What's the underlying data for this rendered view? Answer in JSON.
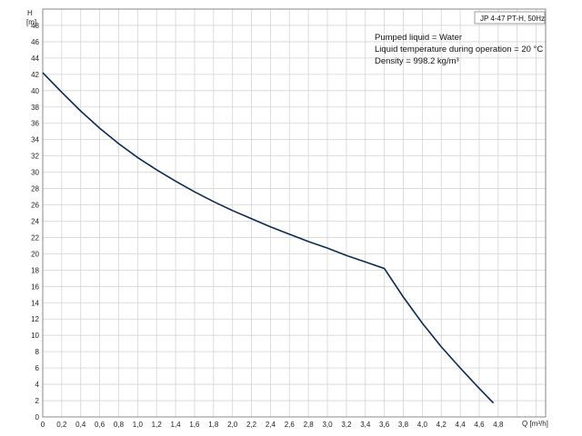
{
  "chart_data": {
    "type": "line",
    "title": "JP 4-47 PT-H, 50Hz",
    "xlabel": "Q [m³/h]",
    "ylabel_top": "H",
    "ylabel_unit": "[m]",
    "xlim": [
      0,
      5.3
    ],
    "ylim": [
      0,
      50
    ],
    "x_ticks": [
      "0",
      "0,2",
      "0,4",
      "0,6",
      "0,8",
      "1,0",
      "1,2",
      "1,4",
      "1,6",
      "1,8",
      "2,0",
      "2,2",
      "2,4",
      "2,6",
      "2,8",
      "3,0",
      "3,2",
      "3,4",
      "3,6",
      "3,8",
      "4,0",
      "4,2",
      "4,4",
      "4,6",
      "4,8"
    ],
    "y_ticks": [
      "0",
      "2",
      "4",
      "6",
      "8",
      "10",
      "12",
      "14",
      "16",
      "18",
      "20",
      "22",
      "24",
      "26",
      "28",
      "30",
      "32",
      "34",
      "36",
      "38",
      "40",
      "42",
      "44",
      "46",
      "48"
    ],
    "grid": true,
    "line_color": "#0b2a55",
    "series": [
      {
        "x": [
          0,
          0.2,
          0.4,
          0.6,
          0.8,
          1.0,
          1.2,
          1.4,
          1.6,
          1.8,
          2.0,
          2.2,
          2.4,
          2.6,
          2.8,
          3.0,
          3.2,
          3.4,
          3.6,
          3.8,
          4.0,
          4.2,
          4.4,
          4.6,
          4.75
        ],
        "y": [
          42.2,
          39.8,
          37.5,
          35.4,
          33.5,
          31.8,
          30.3,
          28.9,
          27.6,
          26.4,
          25.3,
          24.3,
          23.3,
          22.4,
          21.5,
          20.7,
          19.8,
          19.0,
          18.2,
          14.7,
          11.5,
          8.6,
          6.0,
          3.5,
          1.7
        ]
      }
    ],
    "annotations": [
      "Pumped liquid = Water",
      "Liquid temperature during operation = 20 °C",
      "Density = 998.2 kg/m³"
    ]
  }
}
